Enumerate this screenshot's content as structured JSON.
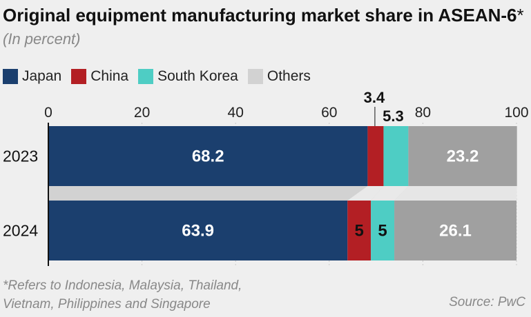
{
  "title": {
    "text": "Original equipment manufacturing market share in ASEAN-6",
    "asterisk": "*",
    "unit": "(In percent)"
  },
  "legend": [
    {
      "label": "Japan",
      "color": "#1b3f6e"
    },
    {
      "label": "China",
      "color": "#b31f24"
    },
    {
      "label": "South Korea",
      "color": "#4ecdc4"
    },
    {
      "label": "Others",
      "color": "#d2d2d2"
    }
  ],
  "chart_data": {
    "type": "bar",
    "orientation": "horizontal",
    "stacked": true,
    "categories": [
      "2023",
      "2024"
    ],
    "series": [
      {
        "name": "Japan",
        "color": "#1b3f6e",
        "values": [
          68.2,
          63.9
        ],
        "labels": [
          "68.2",
          "63.9"
        ]
      },
      {
        "name": "China",
        "color": "#b31f24",
        "values": [
          3.4,
          5
        ],
        "labels": [
          "3.4",
          "5"
        ]
      },
      {
        "name": "South Korea",
        "color": "#4ecdc4",
        "values": [
          5.3,
          5
        ],
        "labels": [
          "5.3",
          "5"
        ]
      },
      {
        "name": "Others",
        "color": "#a0a0a0",
        "values": [
          23.2,
          26.1
        ],
        "labels": [
          "23.2",
          "26.1"
        ]
      }
    ],
    "xlim": [
      0,
      100
    ],
    "ticks": [
      0,
      20,
      40,
      60,
      80,
      100
    ],
    "tick_labels": [
      "0",
      "20",
      "40",
      "60",
      "80",
      "100"
    ],
    "connector_color": "#d2d2d2"
  },
  "footnote": {
    "line1": "*Refers to Indonesia, Malaysia, Thailand,",
    "line2": "Vietnam, Philippines and Singapore"
  },
  "source": "Source: PwC"
}
